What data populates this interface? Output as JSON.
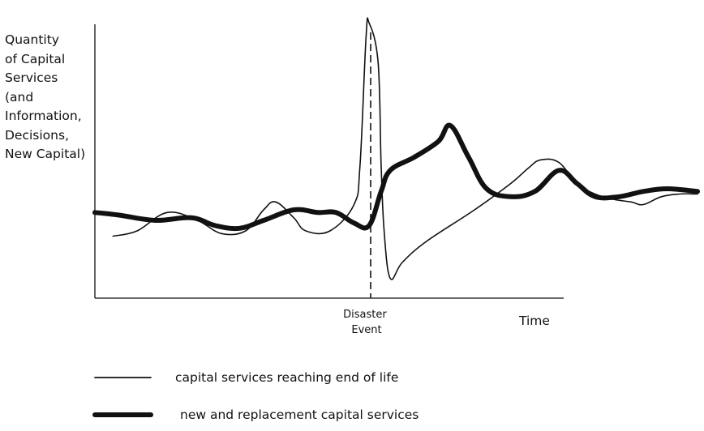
{
  "chart_data": {
    "type": "line",
    "ylabel": "Quantity\nof Capital\nServices\n(and\nInformation,\nDecisions,\nNew Capital)",
    "xlabel": "Time",
    "event_label": "Disaster\nEvent",
    "x_event": 0.46,
    "x_range": [
      0,
      1
    ],
    "y_range": [
      0,
      1
    ],
    "grid": false,
    "legend_position": "bottom",
    "series": [
      {
        "name": "capital services reaching end of life",
        "style": "thin",
        "points": [
          [
            0.03,
            0.18
          ],
          [
            0.07,
            0.2
          ],
          [
            0.12,
            0.27
          ],
          [
            0.17,
            0.24
          ],
          [
            0.21,
            0.19
          ],
          [
            0.25,
            0.2
          ],
          [
            0.28,
            0.28
          ],
          [
            0.3,
            0.31
          ],
          [
            0.33,
            0.25
          ],
          [
            0.35,
            0.2
          ],
          [
            0.39,
            0.2
          ],
          [
            0.43,
            0.3
          ],
          [
            0.44,
            0.45
          ],
          [
            0.45,
            0.94
          ],
          [
            0.455,
            0.99
          ],
          [
            0.47,
            0.84
          ],
          [
            0.475,
            0.45
          ],
          [
            0.48,
            0.2
          ],
          [
            0.49,
            0.02
          ],
          [
            0.51,
            0.08
          ],
          [
            0.55,
            0.16
          ],
          [
            0.63,
            0.28
          ],
          [
            0.69,
            0.38
          ],
          [
            0.72,
            0.44
          ],
          [
            0.74,
            0.47
          ],
          [
            0.77,
            0.46
          ],
          [
            0.8,
            0.38
          ],
          [
            0.83,
            0.34
          ],
          [
            0.86,
            0.32
          ],
          [
            0.89,
            0.31
          ],
          [
            0.91,
            0.3
          ],
          [
            0.94,
            0.33
          ],
          [
            0.97,
            0.34
          ],
          [
            1.0,
            0.34
          ]
        ]
      },
      {
        "name": "new and replacement capital services",
        "style": "thick",
        "points": [
          [
            0.0,
            0.27
          ],
          [
            0.04,
            0.26
          ],
          [
            0.1,
            0.24
          ],
          [
            0.16,
            0.25
          ],
          [
            0.2,
            0.22
          ],
          [
            0.24,
            0.21
          ],
          [
            0.28,
            0.24
          ],
          [
            0.33,
            0.28
          ],
          [
            0.37,
            0.27
          ],
          [
            0.4,
            0.27
          ],
          [
            0.43,
            0.23
          ],
          [
            0.455,
            0.22
          ],
          [
            0.475,
            0.35
          ],
          [
            0.49,
            0.43
          ],
          [
            0.53,
            0.48
          ],
          [
            0.57,
            0.54
          ],
          [
            0.59,
            0.6
          ],
          [
            0.62,
            0.48
          ],
          [
            0.65,
            0.36
          ],
          [
            0.69,
            0.33
          ],
          [
            0.73,
            0.35
          ],
          [
            0.77,
            0.43
          ],
          [
            0.8,
            0.38
          ],
          [
            0.83,
            0.33
          ],
          [
            0.87,
            0.33
          ],
          [
            0.91,
            0.35
          ],
          [
            0.95,
            0.36
          ],
          [
            1.0,
            0.35
          ]
        ]
      }
    ]
  }
}
